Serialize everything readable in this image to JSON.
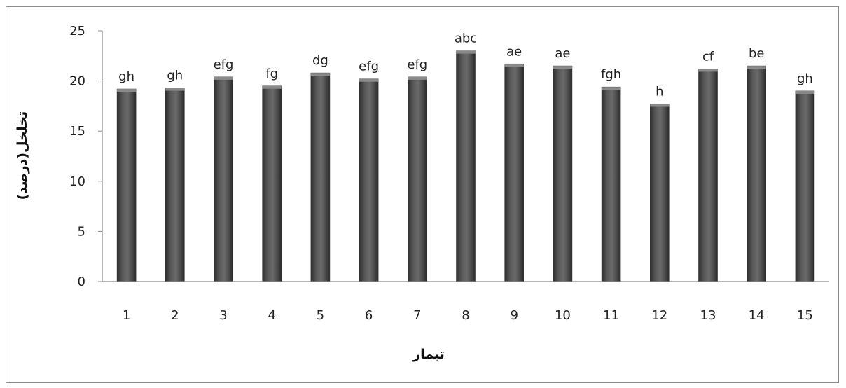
{
  "chart_data": {
    "type": "bar",
    "categories": [
      "1",
      "2",
      "3",
      "4",
      "5",
      "6",
      "7",
      "8",
      "9",
      "10",
      "11",
      "12",
      "13",
      "14",
      "15"
    ],
    "values": [
      19.2,
      19.3,
      20.4,
      19.5,
      20.8,
      20.2,
      20.4,
      23.0,
      21.7,
      21.5,
      19.4,
      17.7,
      21.2,
      21.5,
      19.0
    ],
    "data_labels": [
      "gh",
      "gh",
      "efg",
      "fg",
      "dg",
      "efg",
      "efg",
      "abc",
      "ae",
      "ae",
      "fgh",
      "h",
      "cf",
      "be",
      "gh"
    ],
    "y_ticks": [
      "0",
      "5",
      "10",
      "15",
      "20",
      "25"
    ],
    "ylim": [
      0,
      25
    ],
    "xlabel": "تیمار",
    "ylabel": "تخلخل(درصد)",
    "grid": false,
    "bar_color": "#4a4a4a"
  }
}
